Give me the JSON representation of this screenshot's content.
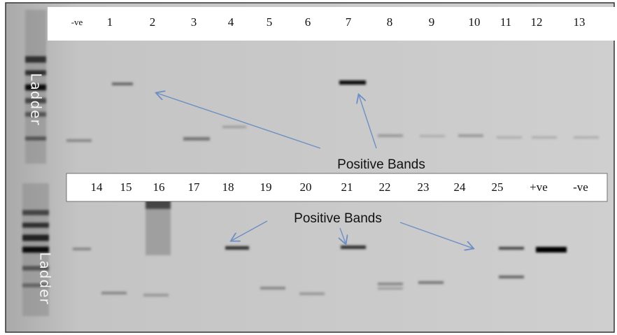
{
  "top_lanes": [
    "-ve",
    "1",
    "2",
    "3",
    "4",
    "5",
    "6",
    "7",
    "8",
    "9",
    "10",
    "11",
    "12",
    "13"
  ],
  "bottom_lanes": [
    "14",
    "15",
    "16",
    "17",
    "18",
    "19",
    "20",
    "21",
    "22",
    "23",
    "24",
    "25",
    "+ve",
    "-ve"
  ],
  "ladder_labels": [
    "Ladder",
    "Ladder"
  ],
  "annotations": [
    "Positive Bands",
    "Positive Bands"
  ]
}
